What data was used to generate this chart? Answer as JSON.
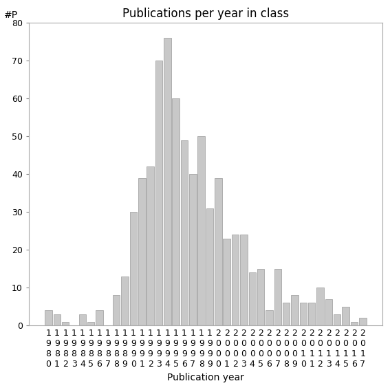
{
  "title": "Publications per year in class",
  "xlabel": "Publication year",
  "ylabel": "#P",
  "years": [
    "1980",
    "1981",
    "1982",
    "1983",
    "1984",
    "1985",
    "1986",
    "1987",
    "1988",
    "1989",
    "1990",
    "1991",
    "1992",
    "1993",
    "1994",
    "1995",
    "1996",
    "1997",
    "1998",
    "1999",
    "2000",
    "2001",
    "2002",
    "2003",
    "2004",
    "2005",
    "2006",
    "2007",
    "2008",
    "2009",
    "2010",
    "2011",
    "2012",
    "2013",
    "2014",
    "2015",
    "2016",
    "2017"
  ],
  "values": [
    4,
    3,
    1,
    0,
    3,
    1,
    4,
    0,
    8,
    13,
    30,
    39,
    42,
    70,
    76,
    60,
    49,
    40,
    50,
    31,
    39,
    23,
    24,
    24,
    14,
    15,
    4,
    15,
    6,
    8,
    6,
    6,
    10,
    7,
    3,
    5,
    1,
    2
  ],
  "bar_color": "#c8c8c8",
  "bar_edgecolor": "#999999",
  "ylim": [
    0,
    80
  ],
  "yticks": [
    0,
    10,
    20,
    30,
    40,
    50,
    60,
    70,
    80
  ],
  "background_color": "#ffffff",
  "title_fontsize": 12,
  "label_fontsize": 10,
  "tick_fontsize": 9,
  "ylabel_fontsize": 10
}
